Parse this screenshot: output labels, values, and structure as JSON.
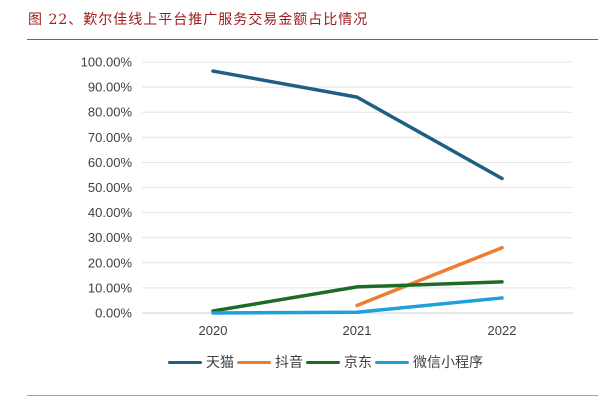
{
  "figure": {
    "title": "图 22、歎尔佳线上平台推广服务交易金额占比情况"
  },
  "chart_data": {
    "type": "line",
    "title": "歎尔佳线上平台推广服务交易金额占比情况",
    "xlabel": "",
    "ylabel": "",
    "categories": [
      "2020",
      "2021",
      "2022"
    ],
    "ylim": [
      0,
      100
    ],
    "yticks": [
      "0.00%",
      "10.00%",
      "20.00%",
      "30.00%",
      "40.00%",
      "50.00%",
      "60.00%",
      "70.00%",
      "80.00%",
      "90.00%",
      "100.00%"
    ],
    "grid": true,
    "legend_position": "bottom",
    "series": [
      {
        "name": "天猫",
        "color": "#1f5f82",
        "values": [
          96.4,
          86.0,
          53.6
        ]
      },
      {
        "name": "抖音",
        "color": "#ed7d31",
        "values": [
          null,
          3.0,
          26.0
        ]
      },
      {
        "name": "京东",
        "color": "#1e6b24",
        "values": [
          0.8,
          10.4,
          12.4
        ]
      },
      {
        "name": "微信小程序",
        "color": "#1f9fdb",
        "values": [
          0.0,
          0.3,
          6.0
        ]
      }
    ]
  }
}
